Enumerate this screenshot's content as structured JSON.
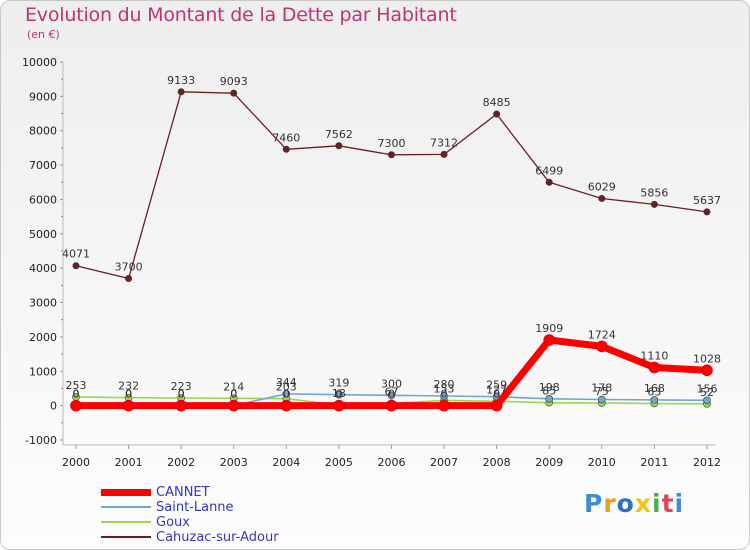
{
  "chart_data": {
    "type": "line",
    "title": "Evolution du Montant de la Dette par Habitant",
    "ylabel": "(en €)",
    "xlabel": "",
    "categories": [
      "2000",
      "2001",
      "2002",
      "2003",
      "2004",
      "2005",
      "2006",
      "2007",
      "2008",
      "2009",
      "2010",
      "2011",
      "2012"
    ],
    "ylim": [
      -1000,
      10000
    ],
    "yticks": [
      -1000,
      0,
      1000,
      2000,
      3000,
      4000,
      5000,
      6000,
      7000,
      8000,
      9000,
      10000
    ],
    "grid": false,
    "legend_position": "bottom-left",
    "series": [
      {
        "name": "CANNET",
        "color": "#ff0000",
        "values": [
          0,
          0,
          0,
          0,
          0,
          0,
          0,
          0,
          0,
          1909,
          1724,
          1110,
          1028
        ],
        "labels": [
          "0",
          "0",
          "0",
          "0",
          "0",
          "0",
          "0",
          "0",
          "0",
          "1909",
          "1724",
          "1110",
          "1028"
        ]
      },
      {
        "name": "Saint-Lanne",
        "color": "#6fa8cf",
        "values": [
          0,
          0,
          0,
          0,
          344,
          319,
          300,
          280,
          259,
          198,
          178,
          168,
          156
        ],
        "labels": [
          "0",
          "0",
          "0",
          "0",
          "344",
          "319",
          "300",
          "280",
          "259",
          "198",
          "178",
          "168",
          "156"
        ]
      },
      {
        "name": "Goux",
        "color": "#9cd64e",
        "values": [
          253,
          232,
          223,
          214,
          203,
          18,
          67,
          153,
          127,
          85,
          75,
          63,
          52
        ],
        "labels": [
          "253",
          "232",
          "223",
          "214",
          "203",
          "18",
          "67",
          "153",
          "127",
          "85",
          "75",
          "63",
          "52"
        ]
      },
      {
        "name": "Cahuzac-sur-Adour",
        "color": "#6a1f24",
        "values": [
          4071,
          3700,
          9133,
          9093,
          7460,
          7562,
          7300,
          7312,
          8485,
          6499,
          6029,
          5856,
          5637
        ],
        "labels": [
          "4071",
          "3700",
          "9133",
          "9093",
          "7460",
          "7562",
          "7300",
          "7312",
          "8485",
          "6499",
          "6029",
          "5856",
          "5637"
        ]
      }
    ]
  },
  "brand": {
    "letters": [
      "P",
      "r",
      "o",
      "x",
      "i",
      "t",
      "i"
    ],
    "colors": [
      "#3b8bd9",
      "#f29a1d",
      "#2f6fc5",
      "#f2c318",
      "#4cae4c",
      "#e0465a",
      "#3b8bd9"
    ]
  }
}
